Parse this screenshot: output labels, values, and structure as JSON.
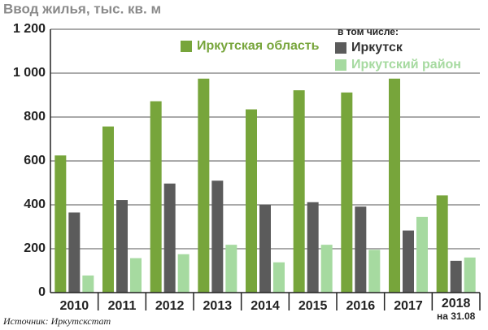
{
  "chart_data": {
    "type": "bar",
    "title": "Ввод жилья, тыс. кв. м",
    "categories": [
      "2010",
      "2011",
      "2012",
      "2013",
      "2014",
      "2015",
      "2016",
      "2017",
      "2018"
    ],
    "last_category_note": "на 31.08",
    "legend_heading": "в том числе:",
    "series": [
      {
        "name": "Иркутская область",
        "color": "#77a53b",
        "values": [
          625,
          757,
          872,
          975,
          835,
          922,
          912,
          975,
          443
        ]
      },
      {
        "name": "Иркутск",
        "color": "#5b5b5b",
        "values": [
          365,
          422,
          497,
          510,
          400,
          412,
          392,
          283,
          145
        ]
      },
      {
        "name": "Иркутский район",
        "color": "#a6daa0",
        "values": [
          78,
          157,
          175,
          218,
          138,
          218,
          195,
          345,
          160
        ]
      }
    ],
    "ylim": [
      0,
      1200
    ],
    "yticks": [
      0,
      200,
      400,
      600,
      800,
      {
        "value": 1000,
        "label": "1 000"
      },
      {
        "value": 1200,
        "label": "1 200"
      }
    ],
    "grid": true,
    "source": "Источник: Иркутскстат"
  }
}
